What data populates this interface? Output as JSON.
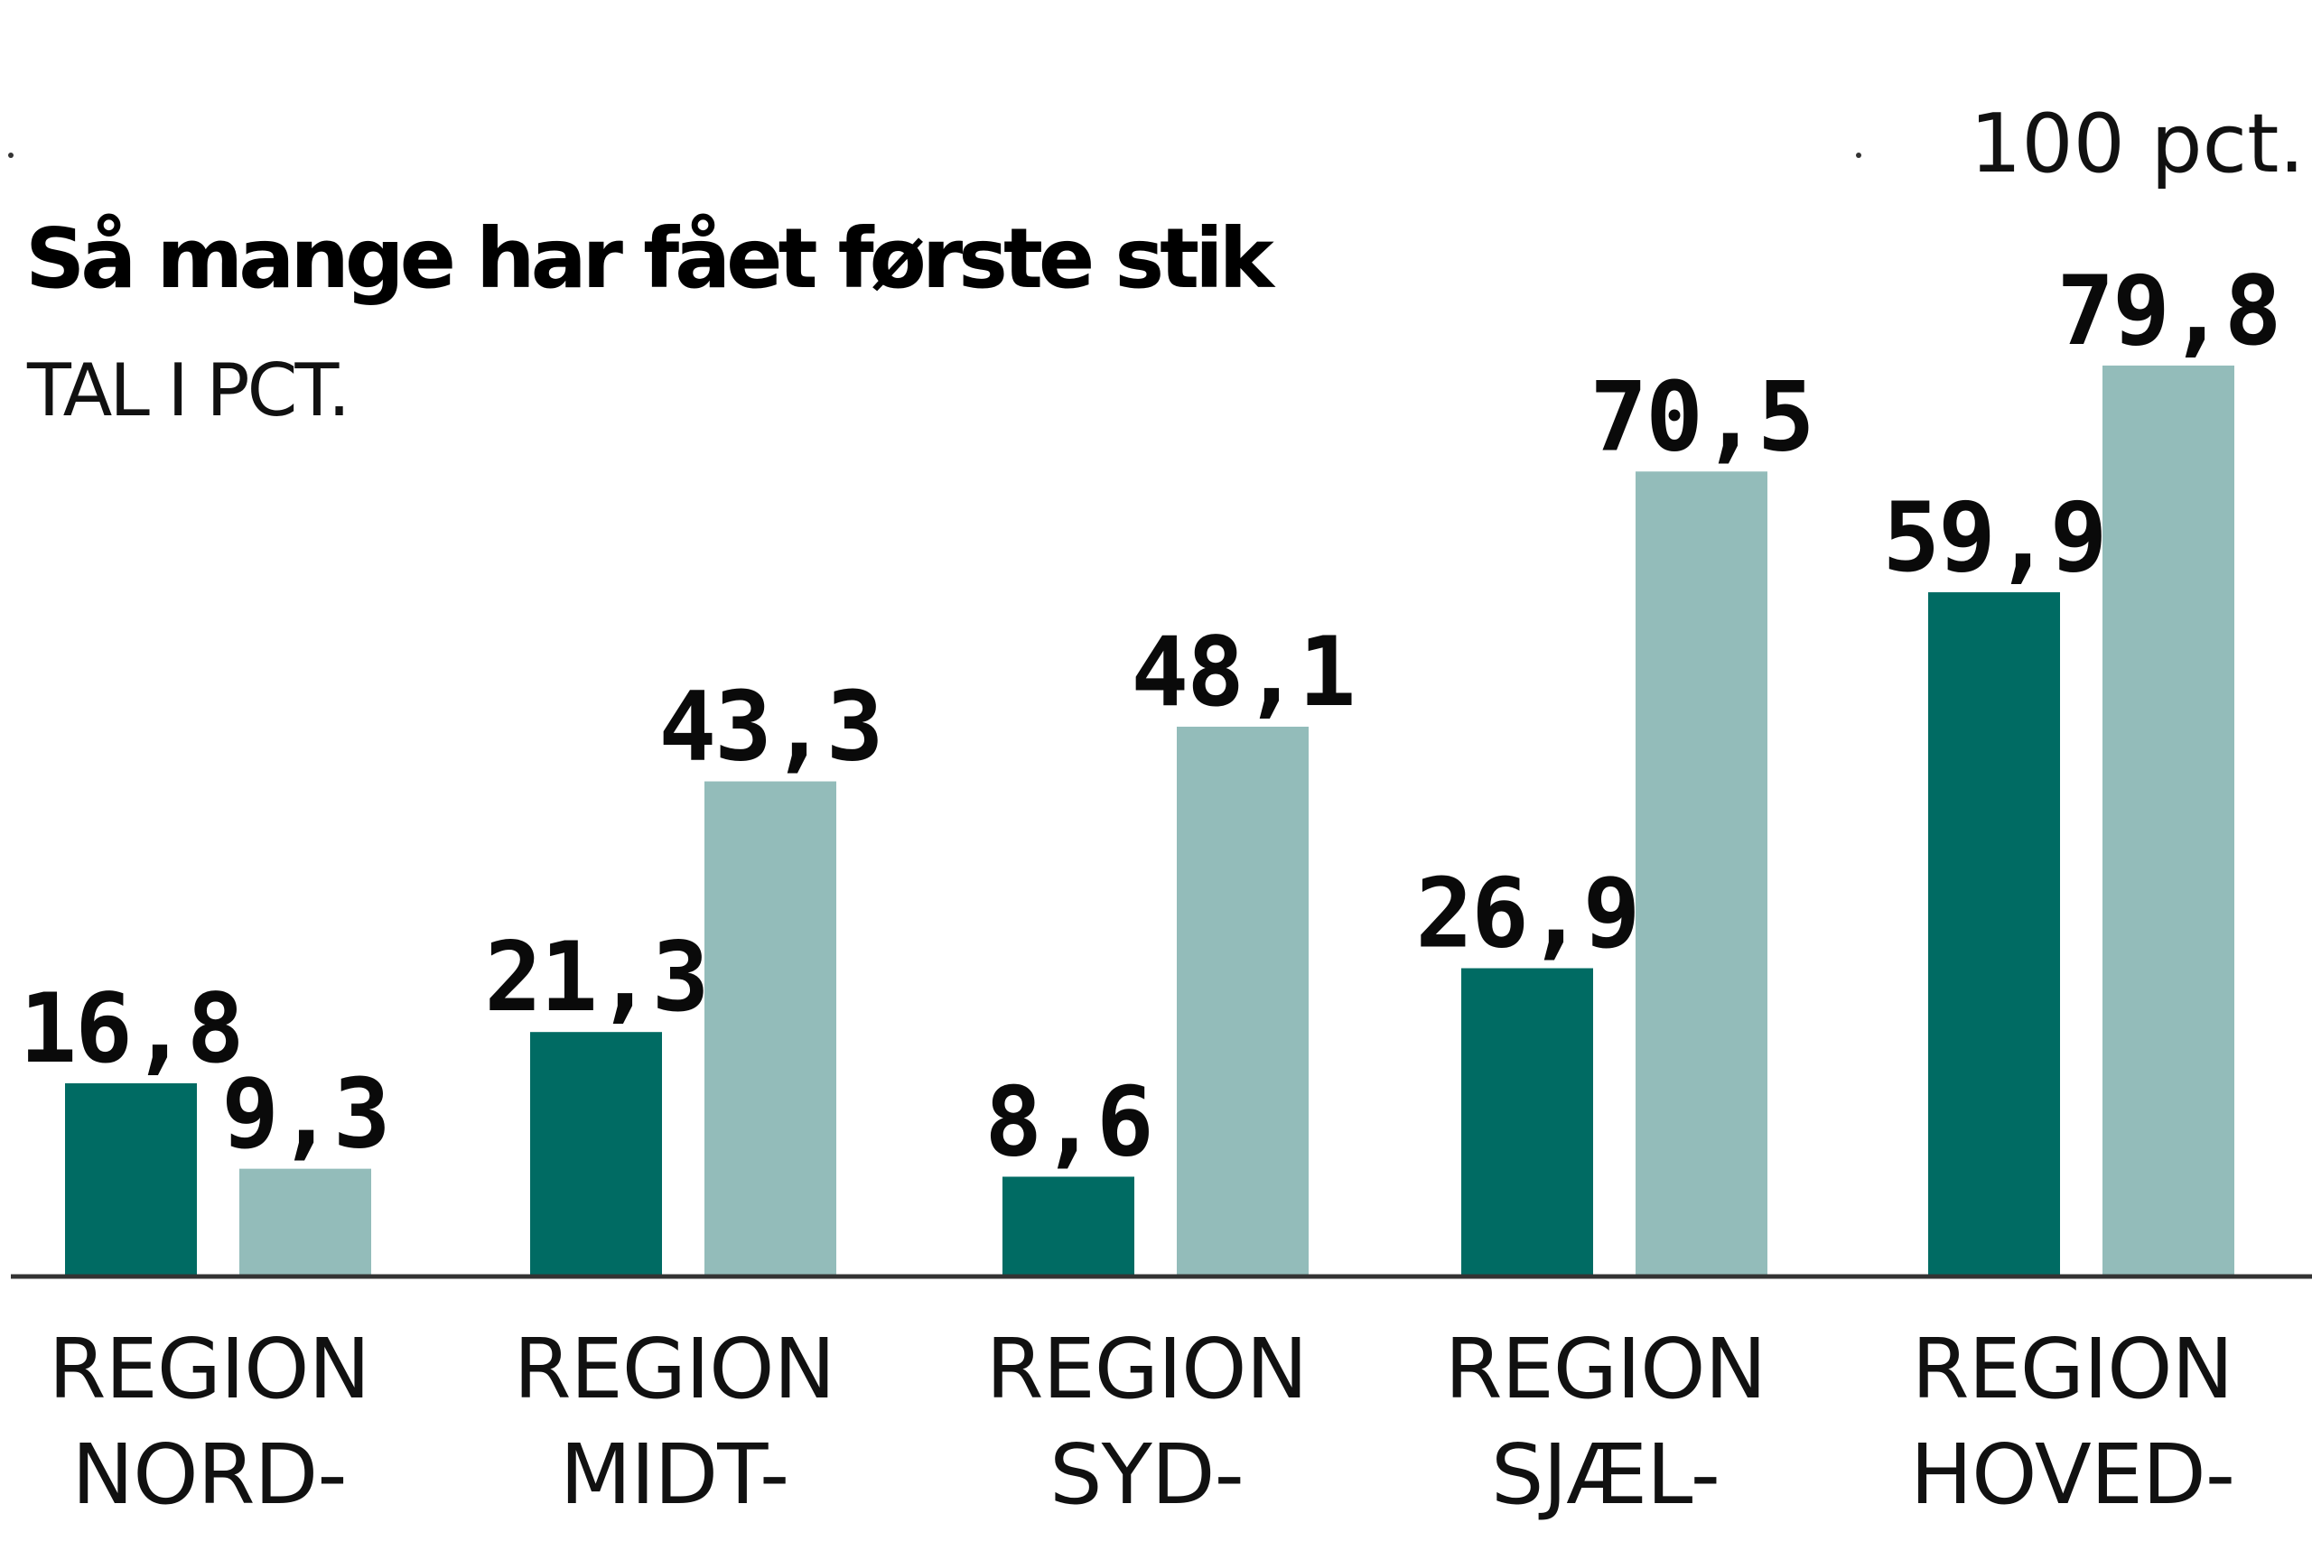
{
  "chart_data": {
    "type": "bar",
    "title": "Så mange har fået første stik",
    "subtitle": "TAL I PCT.",
    "max_label": "100 pct.",
    "ylim": [
      0,
      100
    ],
    "grid": false,
    "legend": "none",
    "categories": [
      [
        "REGION",
        "NORD-"
      ],
      [
        "REGION",
        "MIDT-"
      ],
      [
        "REGION",
        "SYD-"
      ],
      [
        "REGION",
        "SJÆL-"
      ],
      [
        "REGION",
        "HOVED-"
      ]
    ],
    "series": [
      {
        "values": [
          16.8,
          21.3,
          8.6,
          26.9,
          59.9
        ],
        "labels": [
          "16,8",
          "21,3",
          "8,6",
          "26,9",
          "59,9"
        ],
        "color": "#006b63"
      },
      {
        "values": [
          9.3,
          43.3,
          48.1,
          70.5,
          79.8
        ],
        "labels": [
          "9,3",
          "43,3",
          "48,1",
          "70,5",
          "79,8"
        ],
        "color": "#93bcba"
      }
    ],
    "axis_color": "#333333"
  }
}
